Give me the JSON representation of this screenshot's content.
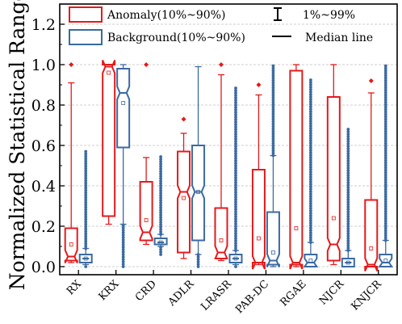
{
  "chart_data": {
    "type": "boxplot",
    "ylabel": "Normalized Statistical Range",
    "ylim": [
      -0.04,
      1.3
    ],
    "yticks": [
      "0.0",
      "0.2",
      "0.4",
      "0.6",
      "0.8",
      "1.0",
      "1.2"
    ],
    "ytick_values": [
      0.0,
      0.2,
      0.4,
      0.6,
      0.8,
      1.0,
      1.2
    ],
    "grid": true,
    "legend": {
      "placement": "top",
      "anomaly_label": "Anomaly(10%~90%)",
      "background_label": "Background(10%~90%)",
      "whisker_label": "1%~99%",
      "median_label": "Median line"
    },
    "colors": {
      "anomaly": "#e41a1c",
      "background": "#3b6aa0"
    },
    "categories": [
      "RX",
      "KRX",
      "CRD",
      "ADLR",
      "LRASR",
      "PAB-DC",
      "RGAE",
      "NJCR",
      "KNJCR"
    ],
    "series": [
      {
        "name": "Anomaly(10%~90%)",
        "boxes": [
          {
            "q10": 0.03,
            "q90": 0.19,
            "median": 0.05,
            "mean": 0.11,
            "w_low": 0.02,
            "w_high": 0.91,
            "outliers": [
              1.0
            ]
          },
          {
            "q10": 0.25,
            "q90": 1.0,
            "median": 0.99,
            "mean": 0.96,
            "w_low": 0.21,
            "w_high": 1.0,
            "outliers": []
          },
          {
            "q10": 0.13,
            "q90": 0.42,
            "median": 0.17,
            "mean": 0.23,
            "w_low": 0.11,
            "w_high": 0.54,
            "outliers": [
              1.0
            ]
          },
          {
            "q10": 0.07,
            "q90": 0.57,
            "median": 0.37,
            "mean": 0.34,
            "w_low": 0.04,
            "w_high": 0.66,
            "outliers": [
              0.73
            ]
          },
          {
            "q10": 0.04,
            "q90": 0.29,
            "median": 0.07,
            "mean": 0.13,
            "w_low": 0.03,
            "w_high": 0.95,
            "outliers": [
              1.0
            ]
          },
          {
            "q10": 0.02,
            "q90": 0.48,
            "median": 0.02,
            "mean": 0.14,
            "w_low": 0.01,
            "w_high": 0.85,
            "outliers": [
              0.9
            ]
          },
          {
            "q10": 0.01,
            "q90": 0.97,
            "median": 0.02,
            "mean": 0.19,
            "w_low": 0.0,
            "w_high": 1.0,
            "outliers": []
          },
          {
            "q10": 0.03,
            "q90": 0.84,
            "median": 0.11,
            "mean": 0.24,
            "w_low": 0.01,
            "w_high": 1.0,
            "outliers": []
          },
          {
            "q10": 0.0,
            "q90": 0.33,
            "median": 0.01,
            "mean": 0.09,
            "w_low": 0.0,
            "w_high": 0.86,
            "outliers": [
              0.92
            ]
          }
        ]
      },
      {
        "name": "Background(10%~90%)",
        "boxes": [
          {
            "q10": 0.02,
            "q90": 0.06,
            "median": 0.04,
            "mean": 0.04,
            "w_low": 0.01,
            "w_high": 0.09,
            "out_low": 0.0,
            "out_high": 0.58
          },
          {
            "q10": 0.59,
            "q90": 0.98,
            "median": 0.86,
            "mean": 0.81,
            "w_low": 0.21,
            "w_high": 1.0,
            "out_low": 0.0,
            "out_high": 0.2
          },
          {
            "q10": 0.11,
            "q90": 0.14,
            "median": 0.12,
            "mean": 0.12,
            "w_low": 0.1,
            "w_high": 0.16,
            "out_low": 0.06,
            "out_high": 0.55
          },
          {
            "q10": 0.13,
            "q90": 0.6,
            "median": 0.37,
            "mean": 0.37,
            "w_low": 0.06,
            "w_high": 0.99,
            "out_low": 0.0,
            "out_high": 0.0
          },
          {
            "q10": 0.02,
            "q90": 0.06,
            "median": 0.04,
            "mean": 0.04,
            "w_low": 0.01,
            "w_high": 0.08,
            "out_low": 0.0,
            "out_high": 0.89
          },
          {
            "q10": 0.01,
            "q90": 0.27,
            "median": 0.03,
            "mean": 0.07,
            "w_low": 0.0,
            "w_high": 0.55,
            "out_low": 0.0,
            "out_high": 1.0
          },
          {
            "q10": 0.0,
            "q90": 0.06,
            "median": 0.02,
            "mean": 0.03,
            "w_low": 0.0,
            "w_high": 0.12,
            "out_low": 0.0,
            "out_high": 0.93
          },
          {
            "q10": 0.0,
            "q90": 0.04,
            "median": 0.02,
            "mean": 0.02,
            "w_low": 0.0,
            "w_high": 0.08,
            "out_low": 0.0,
            "out_high": 0.69
          },
          {
            "q10": 0.0,
            "q90": 0.06,
            "median": 0.02,
            "mean": 0.03,
            "w_low": 0.0,
            "w_high": 0.13,
            "out_low": 0.0,
            "out_high": 1.0
          }
        ]
      }
    ]
  }
}
